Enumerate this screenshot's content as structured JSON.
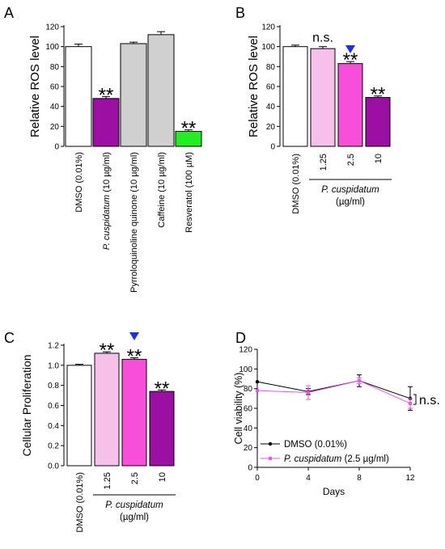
{
  "colors": {
    "red": "#e8333b",
    "blue": "#1b2ee8",
    "white": "#ffffff",
    "purple": "#9b0fa3",
    "grey": "#d0d0d0",
    "green": "#22ee22",
    "light_pink": "#f7c0ea",
    "pink": "#f74fd9",
    "dmso_line": "#000000",
    "pc_line": "#ee55ee"
  },
  "chart_data": [
    {
      "panel": "A",
      "type": "bar",
      "ylabel": "Relative ROS level",
      "ylim": [
        0,
        120
      ],
      "yticks": [
        "0",
        "20",
        "40",
        "60",
        "80",
        "100",
        "120"
      ],
      "categories": [
        "DMSO (0.01%)",
        "P. cuspidatum (10 µg/ml)",
        "Pyrroloquinoline quinone (10 µg/ml)",
        "Caffeine (10 µg/ml)",
        "Resveratol (100 µM)"
      ],
      "category_label_parts": [
        [
          "DMSO (0.01%)"
        ],
        [
          "P. cuspidatum",
          " (10 µg/ml)"
        ],
        [
          "Pyrroloquinoline quinone (10 µg/ml)"
        ],
        [
          "Caffeine (10 µg/ml)"
        ],
        [
          "Resveratol (100 µM)"
        ]
      ],
      "values": [
        100,
        48,
        103,
        112,
        15
      ],
      "errors": [
        2.5,
        2,
        1.5,
        3,
        1.5
      ],
      "colors": [
        "white",
        "purple",
        "grey",
        "grey",
        "green"
      ],
      "annotations": [
        "",
        "**",
        "",
        "",
        "**"
      ]
    },
    {
      "panel": "B",
      "type": "bar",
      "ylabel": "Relative ROS level",
      "ylim": [
        0,
        120
      ],
      "yticks": [
        "0",
        "20",
        "40",
        "60",
        "80",
        "100",
        "120"
      ],
      "categories": [
        "DMSO (0.01%)",
        "1.25",
        "2.5",
        "10"
      ],
      "values": [
        100,
        98,
        83,
        49
      ],
      "errors": [
        1.5,
        2,
        2,
        1.5
      ],
      "colors": [
        "white",
        "light_pink",
        "pink",
        "purple"
      ],
      "annotations": [
        "",
        "n.s.",
        "**",
        "**"
      ],
      "marker_bar": 2,
      "group_label": [
        "P. cuspidatum",
        "(µg/ml)"
      ]
    },
    {
      "panel": "C",
      "type": "bar",
      "ylabel": "Cellular Proliferation",
      "ylim": [
        0,
        1.2
      ],
      "yticks": [
        "0.0",
        "0.2",
        "0.4",
        "0.6",
        "0.8",
        "1.0",
        "1.2"
      ],
      "categories": [
        "DMSO (0.01%)",
        "1.25",
        "2.5",
        "10"
      ],
      "values": [
        1.0,
        1.12,
        1.06,
        0.74
      ],
      "errors": [
        0.01,
        0.015,
        0.015,
        0.015
      ],
      "colors": [
        "white",
        "light_pink",
        "pink",
        "purple"
      ],
      "annotations": [
        "",
        "**",
        "**",
        "**"
      ],
      "marker_bar": 2,
      "group_label": [
        "P. cuspidatum",
        "(µg/ml)"
      ]
    },
    {
      "panel": "D",
      "type": "line",
      "xlabel": "Days",
      "ylabel": "Cell viability (%)",
      "xlim": [
        0,
        12
      ],
      "ylim": [
        0,
        120
      ],
      "xticks": [
        "0",
        "4",
        "8",
        "12"
      ],
      "yticks": [
        "0",
        "20",
        "40",
        "60",
        "80",
        "100",
        "120"
      ],
      "x": [
        0,
        4,
        8,
        12
      ],
      "series": [
        {
          "name": "DMSO (0.01%)",
          "name_parts": [
            "DMSO (0.01%)"
          ],
          "values": [
            87,
            77,
            88,
            70
          ],
          "errors": [
            0,
            3,
            6,
            12
          ],
          "color": "dmso_line"
        },
        {
          "name": "P. cuspidatum (2.5 µg/ml)",
          "name_parts": [
            "P. cuspidatum",
            " (2.5 µg/ml)"
          ],
          "values": [
            78,
            76,
            88,
            65
          ],
          "errors": [
            0,
            7,
            3,
            5
          ],
          "color": "pc_line"
        }
      ],
      "annotation": "n.s."
    }
  ],
  "panel_letters": [
    "A",
    "B",
    "C",
    "D"
  ]
}
